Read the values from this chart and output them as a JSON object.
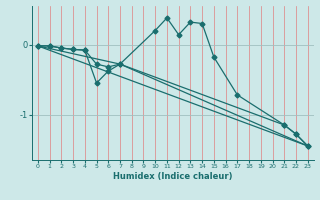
{
  "xlabel": "Humidex (Indice chaleur)",
  "background_color": "#cde8e8",
  "line_color": "#1a6e6e",
  "grid_v_color": "#e08080",
  "grid_h_color": "#a0c0c0",
  "x_ticks": [
    0,
    1,
    2,
    3,
    4,
    5,
    6,
    7,
    8,
    9,
    10,
    11,
    12,
    13,
    14,
    15,
    16,
    17,
    18,
    19,
    20,
    21,
    22,
    23
  ],
  "ylim": [
    -1.65,
    0.55
  ],
  "yticks": [
    0.0,
    -1.0
  ],
  "yticklabels": [
    "0",
    "-1"
  ],
  "line1_x": [
    0,
    1,
    2,
    3,
    4,
    5,
    6,
    7,
    10,
    11,
    12,
    13,
    14,
    15,
    17,
    21,
    22,
    23
  ],
  "line1_y": [
    -0.02,
    -0.02,
    -0.05,
    -0.07,
    -0.08,
    -0.55,
    -0.38,
    -0.28,
    0.2,
    0.38,
    0.14,
    0.32,
    0.3,
    -0.18,
    -0.72,
    -1.15,
    -1.28,
    -1.45
  ],
  "line2_x": [
    0,
    1,
    2,
    3,
    4,
    5,
    6,
    7,
    21,
    22,
    23
  ],
  "line2_y": [
    -0.02,
    -0.02,
    -0.05,
    -0.07,
    -0.08,
    -0.28,
    -0.32,
    -0.28,
    -1.15,
    -1.28,
    -1.45
  ],
  "line3_x": [
    0,
    7,
    23
  ],
  "line3_y": [
    -0.02,
    -0.28,
    -1.45
  ],
  "line4_x": [
    0,
    23
  ],
  "line4_y": [
    -0.02,
    -1.45
  ],
  "marker": "D",
  "markersize": 2.5,
  "linewidth": 0.9
}
